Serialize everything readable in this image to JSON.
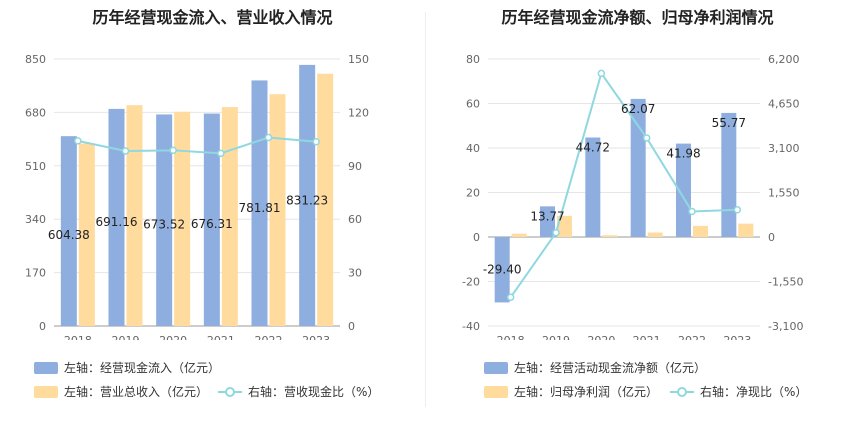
{
  "colors": {
    "bar_primary": "#8eaedf",
    "bar_secondary": "#ffdb9e",
    "line": "#8fd8e0",
    "grid": "#e6e6e6"
  },
  "chart_data": [
    {
      "type": "bar",
      "title": "历年经营现金流入、营业收入情况",
      "categories": [
        "2018",
        "2019",
        "2020",
        "2021",
        "2022",
        "2023"
      ],
      "left_ticks": [
        "850",
        "680",
        "510",
        "340",
        "170",
        "0"
      ],
      "right_ticks": [
        "150",
        "120",
        "90",
        "60",
        "30",
        "0"
      ],
      "ylim_left": [
        0,
        850
      ],
      "ylim_right": [
        0,
        150
      ],
      "series": [
        {
          "name": "左轴：经营现金流入（亿元）",
          "axis": "left",
          "kind": "bar",
          "values": [
            604.38,
            691.16,
            673.52,
            676.31,
            781.81,
            831.23
          ],
          "labels": [
            "604.38",
            "691.16",
            "673.52",
            "676.31",
            "781.81",
            "831.23"
          ]
        },
        {
          "name": "左轴：营业总收入（亿元）",
          "axis": "left",
          "kind": "bar",
          "values": [
            581,
            703,
            682,
            697,
            738,
            803
          ]
        },
        {
          "name": "右轴：营收现金比（%）",
          "axis": "right",
          "kind": "line",
          "values": [
            104.0,
            98.3,
            98.7,
            97.0,
            105.9,
            103.5
          ]
        }
      ]
    },
    {
      "type": "bar",
      "title": "历年经营现金流净额、归母净利润情况",
      "categories": [
        "2018",
        "2019",
        "2020",
        "2021",
        "2022",
        "2023"
      ],
      "left_ticks": [
        "80",
        "60",
        "40",
        "20",
        "0",
        "-20",
        "-40"
      ],
      "right_ticks": [
        "6,200",
        "4,650",
        "3,100",
        "1,550",
        "0",
        "-1,550",
        "-3,100"
      ],
      "ylim_left": [
        -40,
        80
      ],
      "ylim_right": [
        -3100,
        6200
      ],
      "series": [
        {
          "name": "左轴：经营活动现金流净额（亿元）",
          "axis": "left",
          "kind": "bar",
          "values": [
            -29.4,
            13.77,
            44.72,
            62.07,
            41.98,
            55.77
          ],
          "labels": [
            "-29.40",
            "13.77",
            "44.72",
            "62.07",
            "41.98",
            "55.77"
          ]
        },
        {
          "name": "左轴：归母净利润（亿元）",
          "axis": "left",
          "kind": "bar",
          "values": [
            1.5,
            9.5,
            0.8,
            2.0,
            5.0,
            6.0
          ]
        },
        {
          "name": "右轴：净现比（%）",
          "axis": "right",
          "kind": "line",
          "values": [
            -2100,
            150,
            5700,
            3450,
            890,
            950
          ]
        }
      ]
    }
  ]
}
